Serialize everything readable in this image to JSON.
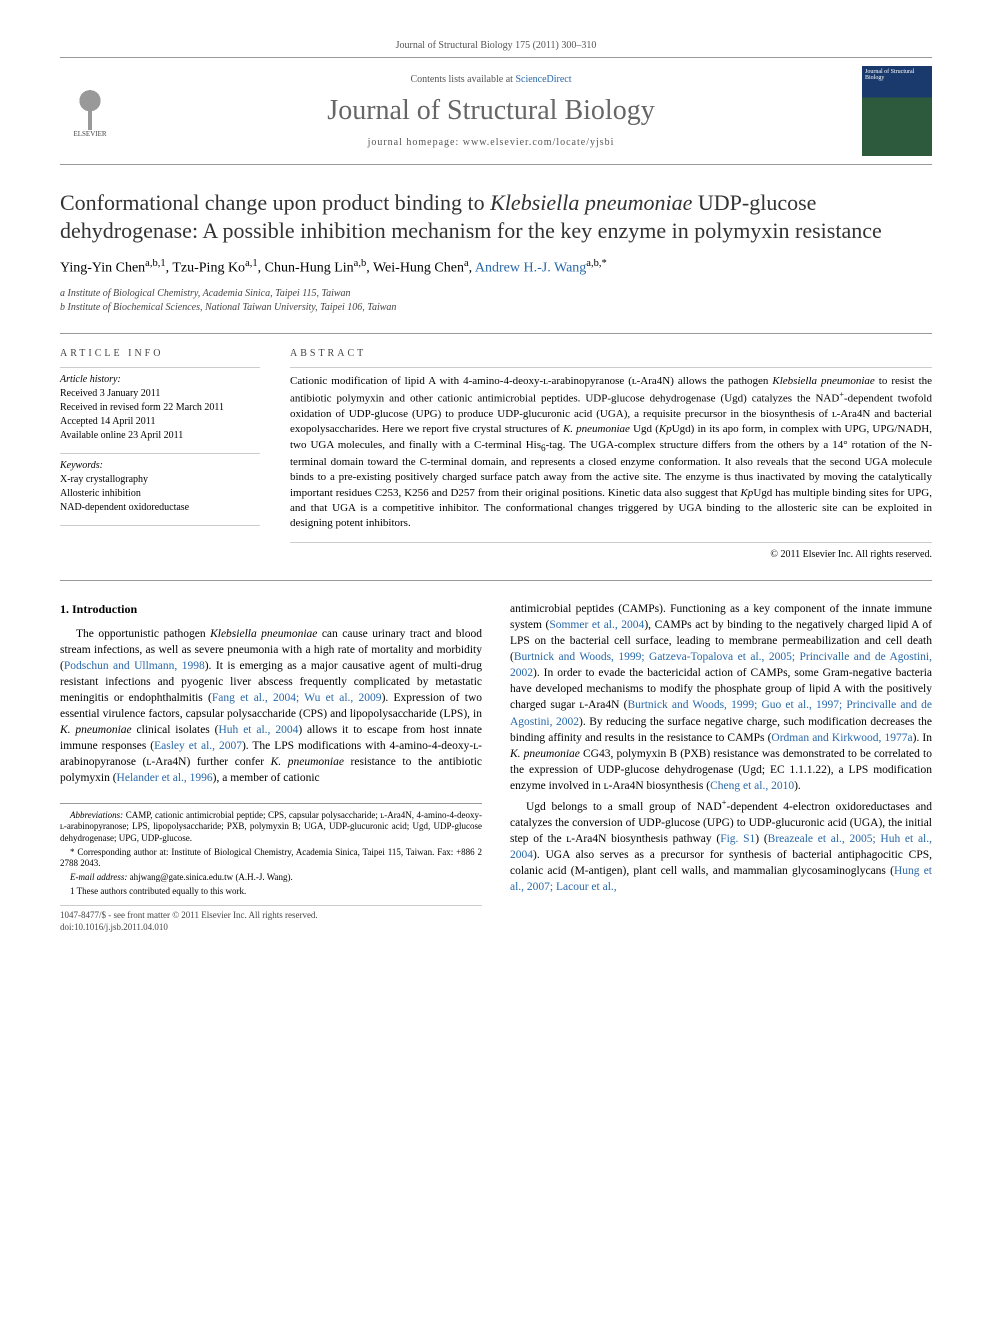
{
  "journal_ref": "Journal of Structural Biology 175 (2011) 300–310",
  "header": {
    "contents_prefix": "Contents lists available at ",
    "contents_link": "ScienceDirect",
    "journal_title": "Journal of Structural Biology",
    "homepage_label": "journal homepage: ",
    "homepage_url": "www.elsevier.com/locate/yjsbi",
    "publisher": "ELSEVIER",
    "cover_label": "Journal of Structural Biology"
  },
  "title_html": "Conformational change upon product binding to <em>Klebsiella pneumoniae</em> UDP-glucose dehydrogenase: A possible inhibition mechanism for the key enzyme in polymyxin resistance",
  "authors_html": "Ying-Yin Chen<sup>a,b,1</sup>, Tzu-Ping Ko<sup>a,1</sup>, Chun-Hung Lin<sup>a,b</sup>, Wei-Hung Chen<sup>a</sup>, <a>Andrew H.-J. Wang</a><sup>a,b,*</sup>",
  "affiliations": [
    "a Institute of Biological Chemistry, Academia Sinica, Taipei 115, Taiwan",
    "b Institute of Biochemical Sciences, National Taiwan University, Taipei 106, Taiwan"
  ],
  "info": {
    "heading": "ARTICLE INFO",
    "history_heading": "Article history:",
    "history": [
      "Received 3 January 2011",
      "Received in revised form 22 March 2011",
      "Accepted 14 April 2011",
      "Available online 23 April 2011"
    ],
    "keywords_heading": "Keywords:",
    "keywords": [
      "X-ray crystallography",
      "Allosteric inhibition",
      "NAD-dependent oxidoreductase"
    ]
  },
  "abstract": {
    "heading": "ABSTRACT",
    "text_html": "Cationic modification of lipid A with 4-amino-4-deoxy-ʟ-arabinopyranose (ʟ-Ara4N) allows the pathogen <em>Klebsiella pneumoniae</em> to resist the antibiotic polymyxin and other cationic antimicrobial peptides. UDP-glucose dehydrogenase (Ugd) catalyzes the NAD<sup>+</sup>-dependent twofold oxidation of UDP-glucose (UPG) to produce UDP-glucuronic acid (UGA), a requisite precursor in the biosynthesis of ʟ-Ara4N and bacterial exopolysaccharides. Here we report five crystal structures of <em>K. pneumoniae</em> Ugd (<em>Kp</em>Ugd) in its apo form, in complex with UPG, UPG/NADH, two UGA molecules, and finally with a C-terminal His<sub>6</sub>-tag. The UGA-complex structure differs from the others by a 14° rotation of the N-terminal domain toward the C-terminal domain, and represents a closed enzyme conformation. It also reveals that the second UGA molecule binds to a pre-existing positively charged surface patch away from the active site. The enzyme is thus inactivated by moving the catalytically important residues C253, K256 and D257 from their original positions. Kinetic data also suggest that <em>Kp</em>Ugd has multiple binding sites for UPG, and that UGA is a competitive inhibitor. The conformational changes triggered by UGA binding to the allosteric site can be exploited in designing potent inhibitors.",
    "copyright": "© 2011 Elsevier Inc. All rights reserved."
  },
  "section1": {
    "heading": "1. Introduction",
    "paragraphs_html": [
      "The opportunistic pathogen <em>Klebsiella pneumoniae</em> can cause urinary tract and blood stream infections, as well as severe pneumonia with a high rate of mortality and morbidity (<a>Podschun and Ullmann, 1998</a>). It is emerging as a major causative agent of multi-drug resistant infections and pyogenic liver abscess frequently complicated by metastatic meningitis or endophthalmitis (<a>Fang et al., 2004; Wu et al., 2009</a>). Expression of two essential virulence factors, capsular polysaccharide (CPS) and lipopolysaccharide (LPS), in <em>K. pneumoniae</em> clinical isolates (<a>Huh et al., 2004</a>) allows it to escape from host innate immune responses (<a>Easley et al., 2007</a>). The LPS modifications with 4-amino-4-deoxy-ʟ-arabinopyranose (ʟ-Ara4N) further confer <em>K. pneumoniae</em> resistance to the antibiotic polymyxin (<a>Helander et al., 1996</a>), a member of cationic",
      "antimicrobial peptides (CAMPs). Functioning as a key component of the innate immune system (<a>Sommer et al., 2004</a>), CAMPs act by binding to the negatively charged lipid A of LPS on the bacterial cell surface, leading to membrane permeabilization and cell death (<a>Burtnick and Woods, 1999; Gatzeva-Topalova et al., 2005; Princivalle and de Agostini, 2002</a>). In order to evade the bactericidal action of CAMPs, some Gram-negative bacteria have developed mechanisms to modify the phosphate group of lipid A with the positively charged sugar ʟ-Ara4N (<a>Burtnick and Woods, 1999; Guo et al., 1997; Princivalle and de Agostini, 2002</a>). By reducing the surface negative charge, such modification decreases the binding affinity and results in the resistance to CAMPs (<a>Ordman and Kirkwood, 1977a</a>). In <em>K. pneumoniae</em> CG43, polymyxin B (PXB) resistance was demonstrated to be correlated to the expression of UDP-glucose dehydrogenase (Ugd; EC 1.1.1.22), a LPS modification enzyme involved in ʟ-Ara4N biosynthesis (<a>Cheng et al., 2010</a>).",
      "Ugd belongs to a small group of NAD<sup>+</sup>-dependent 4-electron oxidoreductases and catalyzes the conversion of UDP-glucose (UPG) to UDP-glucuronic acid (UGA), the initial step of the ʟ-Ara4N biosynthesis pathway (<a>Fig. S1</a>) (<a>Breazeale et al., 2005; Huh et al., 2004</a>). UGA also serves as a precursor for synthesis of bacterial antiphagocitic CPS, colanic acid (M-antigen), plant cell walls, and mammalian glycosaminoglycans (<a>Hung et al., 2007; Lacour et al.,"
    ]
  },
  "footnotes": {
    "abbrev_html": "<em>Abbreviations:</em> CAMP, cationic antimicrobial peptide; CPS, capsular polysaccharide; ʟ-Ara4N, 4-amino-4-deoxy-ʟ-arabinopyranose; LPS, lipopolysaccharide; PXB, polymyxin B; UGA, UDP-glucuronic acid; Ugd, UDP-glucose dehydrogenase; UPG, UDP-glucose.",
    "corresponding_html": "* Corresponding author at: Institute of Biological Chemistry, Academia Sinica, Taipei 115, Taiwan. Fax: +886 2 2788 2043.",
    "email_html": "<em>E-mail address:</em> <a>ahjwang@gate.sinica.edu.tw</a> (A.H.-J. Wang).",
    "equal": "1 These authors contributed equally to this work."
  },
  "footer": {
    "issn": "1047-8477/$ - see front matter © 2011 Elsevier Inc. All rights reserved.",
    "doi": "doi:10.1016/j.jsb.2011.04.010"
  },
  "colors": {
    "link": "#2968a8",
    "text": "#000000",
    "muted": "#555555",
    "border": "#999999"
  }
}
